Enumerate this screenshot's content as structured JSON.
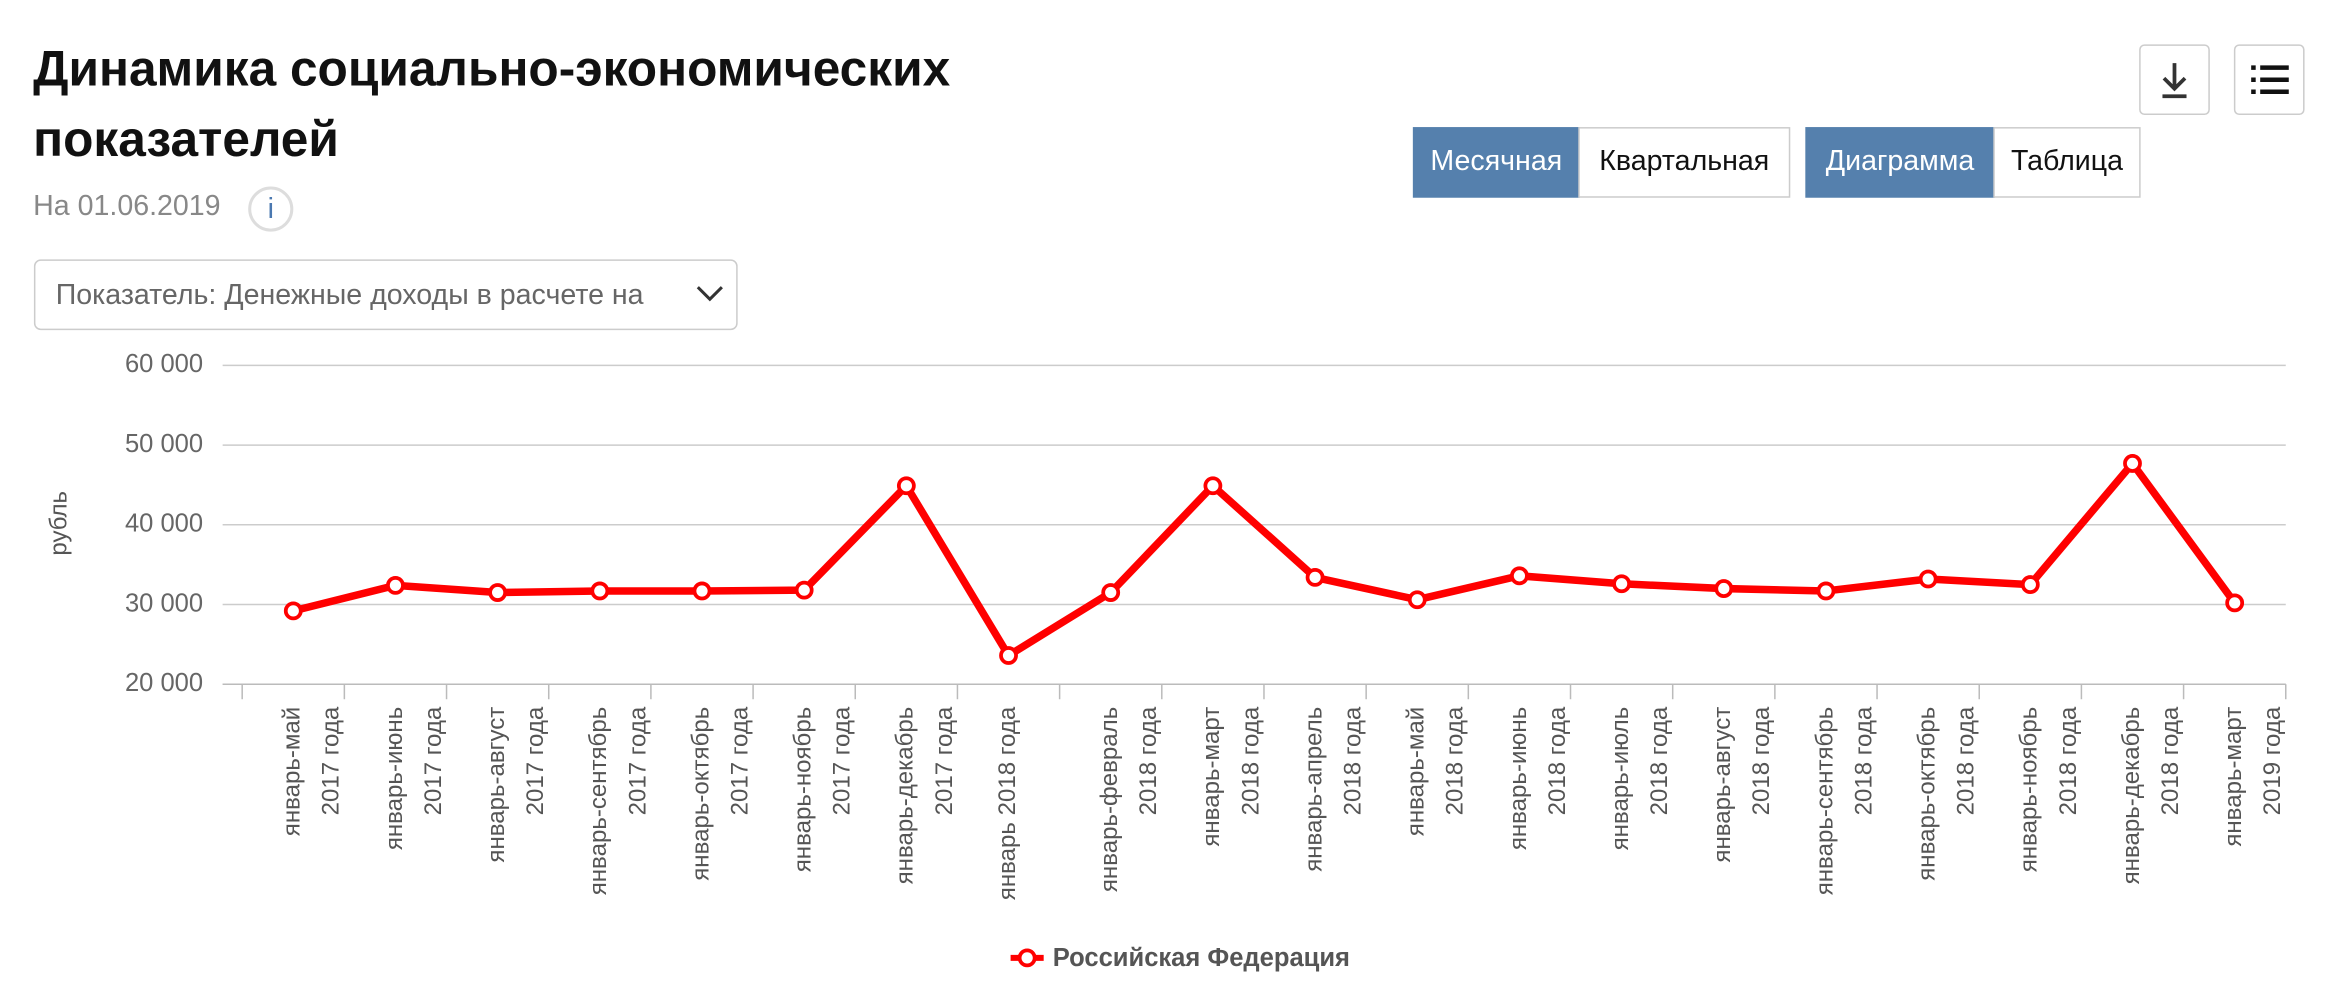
{
  "header": {
    "title_lines": [
      "Динамика социально-экономических",
      "показателей"
    ],
    "date": "На 01.06.2019",
    "info": "i"
  },
  "controls": {
    "period": [
      "Месячная",
      "Квартальная"
    ],
    "view": [
      "Диаграмма",
      "Таблица"
    ],
    "indicator": "Показатель: Денежные доходы в расчете на"
  },
  "chart_data": {
    "type": "line",
    "y_label": "рубль",
    "categories": [
      [
        "январь-май",
        "2017 года"
      ],
      [
        "январь-июнь",
        "2017 года"
      ],
      [
        "январь-август",
        "2017 года"
      ],
      [
        "январь-сентябрь",
        "2017 года"
      ],
      [
        "январь-октябрь",
        "2017 года"
      ],
      [
        "январь-ноябрь",
        "2017 года"
      ],
      [
        "январь-декабрь",
        "2017 года"
      ],
      [
        "январь 2018 года"
      ],
      [
        "январь-февраль",
        "2018 года"
      ],
      [
        "январь-март",
        "2018 года"
      ],
      [
        "январь-апрель",
        "2018 года"
      ],
      [
        "январь-май",
        "2018 года"
      ],
      [
        "январь-июнь",
        "2018 года"
      ],
      [
        "январь-июль",
        "2018 года"
      ],
      [
        "январь-август",
        "2018 года"
      ],
      [
        "январь-сентябрь",
        "2018 года"
      ],
      [
        "январь-октябрь",
        "2018 года"
      ],
      [
        "январь-ноябрь",
        "2018 года"
      ],
      [
        "январь-декабрь",
        "2018 года"
      ],
      [
        "январь-март",
        "2019 года"
      ]
    ],
    "series": [
      {
        "name": "Российская Федерация",
        "color": "#ff0000",
        "values": [
          29200,
          32400,
          31500,
          31700,
          31700,
          31800,
          44900,
          23600,
          31500,
          44900,
          33400,
          30600,
          33600,
          32600,
          32000,
          31700,
          33200,
          32500,
          47700,
          30200
        ]
      }
    ],
    "ylim": [
      20000,
      60000
    ],
    "yticks": [
      {
        "value": 20000,
        "label": "20 000"
      },
      {
        "value": 30000,
        "label": "30 000"
      },
      {
        "value": 40000,
        "label": "40 000"
      },
      {
        "value": 50000,
        "label": "50 000"
      },
      {
        "value": 60000,
        "label": "60 000"
      }
    ],
    "grid": true,
    "legend": "bottom"
  }
}
